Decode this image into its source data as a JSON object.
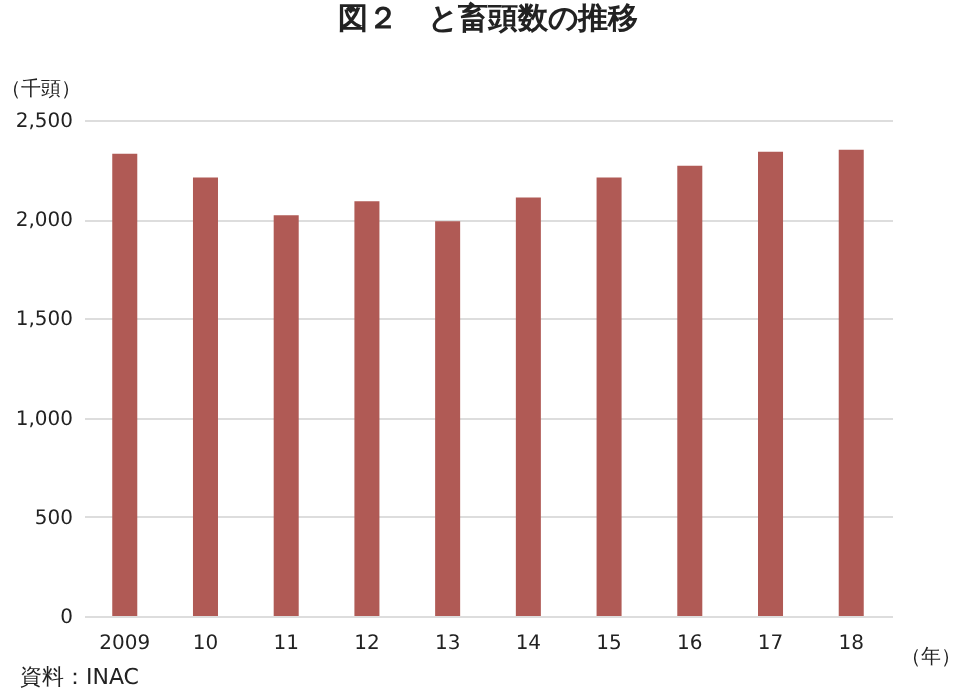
{
  "chart_data": {
    "type": "bar",
    "title": "図２　と畜頭数の推移",
    "xlabel": "（年）",
    "ylabel": "（千頭）",
    "categories": [
      "2009",
      "10",
      "11",
      "12",
      "13",
      "14",
      "15",
      "16",
      "17",
      "18"
    ],
    "values": [
      2330,
      2210,
      2020,
      2090,
      1990,
      2110,
      2210,
      2270,
      2340,
      2350
    ],
    "color": "#b05a55",
    "ylim": [
      0,
      2500
    ],
    "yticks": [
      0,
      500,
      {
        "value": 1000,
        "label": "1,000"
      },
      {
        "value": 1500,
        "label": "1,500"
      },
      {
        "value": 2000,
        "label": "2,000"
      },
      {
        "value": 2500,
        "label": "2,500"
      }
    ],
    "grid": "y",
    "annotations": [
      "資料：INAC"
    ]
  }
}
